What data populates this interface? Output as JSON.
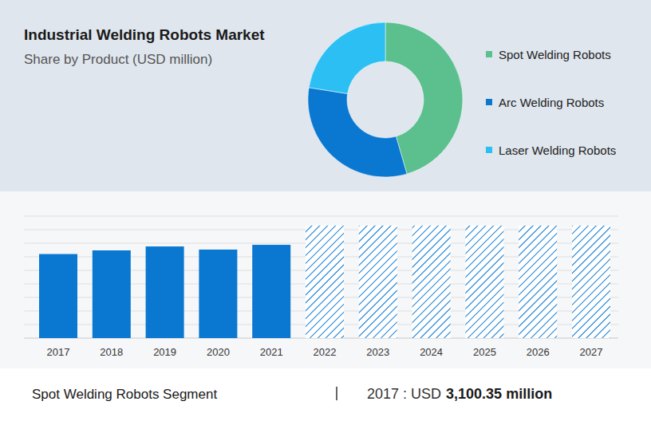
{
  "chart_data": [
    {
      "type": "pie",
      "title": "Industrial Welding Robots Market",
      "subtitle": "Share by Product (USD million)",
      "categories": [
        "Spot Welding Robots",
        "Arc Welding Robots",
        "Laser Welding Robots"
      ],
      "values": [
        45.5,
        32,
        22.5
      ],
      "colors": [
        "#5cc08e",
        "#0a78d1",
        "#2bbff4"
      ],
      "legend": "right"
    },
    {
      "type": "bar",
      "title": "Spot Welding Robots Segment",
      "annotations": [
        "2017 : USD",
        "3,100.35 million"
      ],
      "categories": [
        "2017",
        "2018",
        "2019",
        "2020",
        "2021",
        "2022",
        "2023",
        "2024",
        "2025",
        "2026",
        "2027"
      ],
      "series": [
        {
          "color": "#0a78d1",
          "values": [
            3100.35,
            3235,
            3380,
            3265,
            3440,
            null,
            null,
            null,
            null,
            null,
            null
          ]
        },
        {
          "color": "#0a78d1",
          "line_style": "hatched",
          "values": [
            null,
            null,
            null,
            null,
            null,
            4150,
            4150,
            4150,
            4150,
            4150,
            4150
          ]
        }
      ],
      "ylim": [
        0,
        4500
      ],
      "yticks": [
        0,
        500,
        1000,
        1500,
        2000,
        2500,
        3000,
        3500,
        4000,
        4500
      ],
      "grid": true,
      "tick_labels": "x"
    }
  ]
}
